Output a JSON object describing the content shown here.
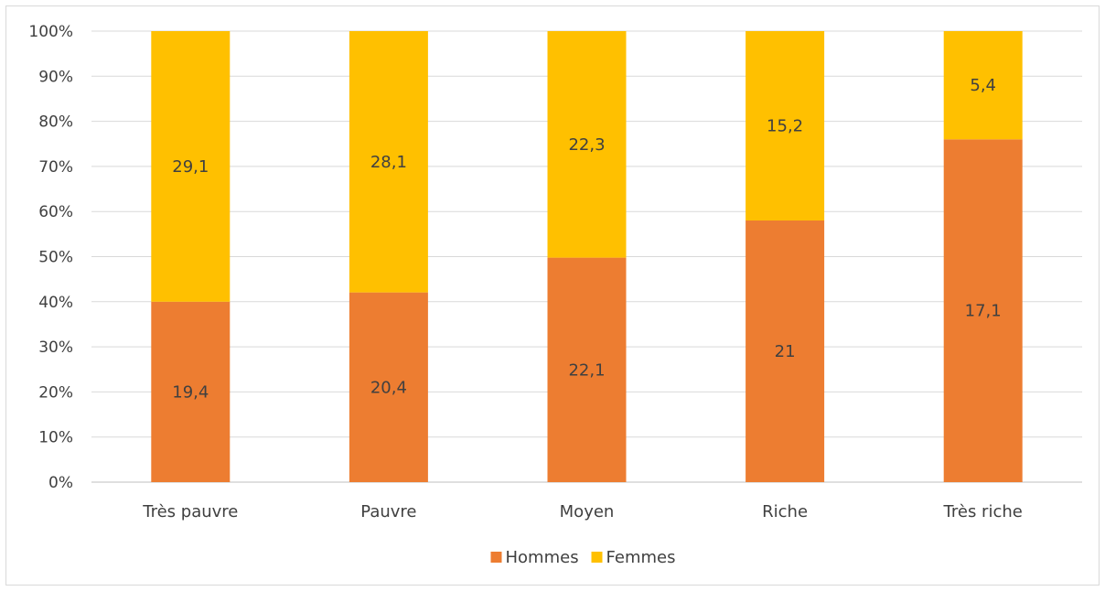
{
  "chart_data": {
    "type": "bar",
    "stacked": true,
    "normalized_percent": true,
    "categories": [
      "Très pauvre",
      "Pauvre",
      "Moyen",
      "Riche",
      "Très riche"
    ],
    "series": [
      {
        "name": "Hommes",
        "values": [
          19.4,
          20.4,
          22.1,
          21,
          17.1
        ],
        "labels": [
          "19,4",
          "20,4",
          "22,1",
          "21",
          "17,1"
        ],
        "color": "#ED7D31"
      },
      {
        "name": "Femmes",
        "values": [
          29.1,
          28.1,
          22.3,
          15.2,
          5.4
        ],
        "labels": [
          "29,1",
          "28,1",
          "22,3",
          "15,2",
          "5,4"
        ],
        "color": "#FFC000"
      }
    ],
    "y_ticks": [
      "0%",
      "10%",
      "20%",
      "30%",
      "40%",
      "50%",
      "60%",
      "70%",
      "80%",
      "90%",
      "100%"
    ],
    "ylim": [
      0,
      100
    ],
    "grid": true,
    "legend_position": "bottom",
    "title": "",
    "xlabel": "",
    "ylabel": ""
  }
}
